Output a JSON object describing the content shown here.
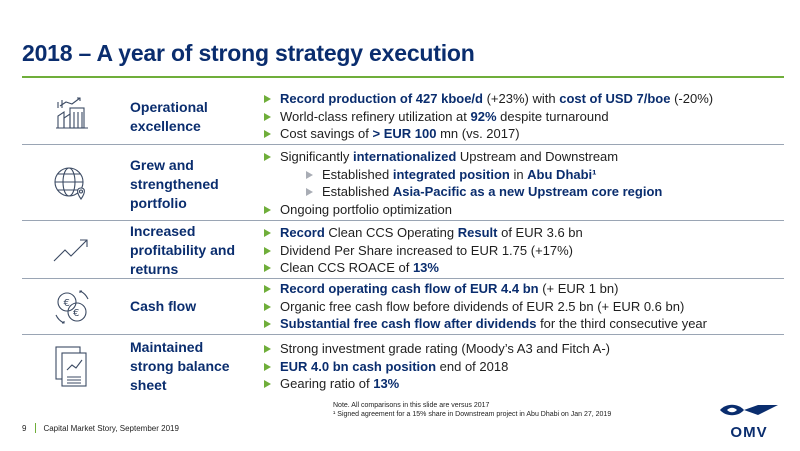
{
  "title": "2018 – A year of strong strategy execution",
  "rows": [
    {
      "heading": "Operational excellence",
      "icon": "factory-chart-icon",
      "bullets": [
        {
          "parts": [
            {
              "t": "Record production of ",
              "b": true
            },
            {
              "t": "427 kboe/d",
              "b": true
            },
            {
              "t": " (+23%) with ",
              "b": false
            },
            {
              "t": "cost of USD 7/boe",
              "b": true
            },
            {
              "t": " (-20%)",
              "b": false
            }
          ]
        },
        {
          "parts": [
            {
              "t": "World-class refinery utilization at ",
              "b": false
            },
            {
              "t": "92%",
              "b": true
            },
            {
              "t": " despite turnaround",
              "b": false
            }
          ]
        },
        {
          "parts": [
            {
              "t": "Cost savings of ",
              "b": false
            },
            {
              "t": "> EUR 100",
              "b": true
            },
            {
              "t": " mn (vs. 2017)",
              "b": false
            }
          ]
        }
      ]
    },
    {
      "heading": "Grew and strengthened portfolio",
      "icon": "globe-pin-icon",
      "bullets": [
        {
          "parts": [
            {
              "t": "Significantly ",
              "b": false
            },
            {
              "t": "internationalized",
              "b": true
            },
            {
              "t": " Upstream and Downstream",
              "b": false
            }
          ]
        },
        {
          "sub": true,
          "parts": [
            {
              "t": "Established ",
              "b": false
            },
            {
              "t": "integrated position",
              "b": true
            },
            {
              "t": " in ",
              "b": false
            },
            {
              "t": "Abu Dhabi¹",
              "b": true
            }
          ]
        },
        {
          "sub": true,
          "parts": [
            {
              "t": "Established ",
              "b": false
            },
            {
              "t": "Asia-Pacific as a new Upstream core region",
              "b": true
            }
          ]
        },
        {
          "parts": [
            {
              "t": "Ongoing portfolio optimization",
              "b": false
            }
          ]
        }
      ]
    },
    {
      "heading": "Increased profitability and returns",
      "icon": "trend-up-icon",
      "bullets": [
        {
          "parts": [
            {
              "t": "Record",
              "b": true
            },
            {
              "t": " Clean CCS Operating ",
              "b": false
            },
            {
              "t": "Result",
              "b": true
            },
            {
              "t": " of EUR 3.6 bn",
              "b": false
            }
          ]
        },
        {
          "parts": [
            {
              "t": "Dividend Per Share increased to EUR 1.75 (+17%)",
              "b": false
            }
          ]
        },
        {
          "parts": [
            {
              "t": "Clean CCS ROACE of ",
              "b": false
            },
            {
              "t": "13%",
              "b": true
            }
          ]
        }
      ]
    },
    {
      "heading": "Cash flow",
      "icon": "currency-cycle-icon",
      "bullets": [
        {
          "parts": [
            {
              "t": "Record operating cash flow of EUR 4.4 bn",
              "b": true
            },
            {
              "t": " (+ EUR 1 bn)",
              "b": false
            }
          ]
        },
        {
          "parts": [
            {
              "t": "Organic free cash flow before dividends of EUR 2.5 bn (+ EUR 0.6 bn)",
              "b": false
            }
          ]
        },
        {
          "parts": [
            {
              "t": "Substantial free cash flow after dividends",
              "b": true
            },
            {
              "t": " for the third consecutive year",
              "b": false
            }
          ]
        }
      ]
    },
    {
      "heading": "Maintained strong balance sheet",
      "icon": "report-document-icon",
      "bullets": [
        {
          "parts": [
            {
              "t": "Strong investment grade rating (Moody’s A3 and Fitch A-)",
              "b": false
            }
          ]
        },
        {
          "parts": [
            {
              "t": "EUR 4.0 bn cash position",
              "b": true
            },
            {
              "t": " end of 2018",
              "b": false
            }
          ]
        },
        {
          "parts": [
            {
              "t": "Gearing ratio of ",
              "b": false
            },
            {
              "t": "13%",
              "b": true
            }
          ]
        }
      ]
    }
  ],
  "notes": [
    "Note. All comparisons in this slide are versus 2017",
    "¹ Signed agreement for a 15% share in Downstream project in Abu Dhabi on Jan 27, 2019"
  ],
  "footer": {
    "page": "9",
    "text": "Capital Market Story, September 2019"
  },
  "logo": {
    "text": "OMV"
  },
  "colors": {
    "accent_green": "#6fae3a",
    "navy": "#0a2d6e"
  }
}
